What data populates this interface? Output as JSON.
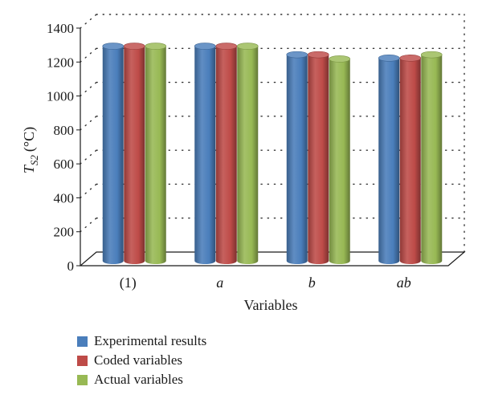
{
  "chart_data": {
    "type": "bar",
    "categories": [
      "(1)",
      "a",
      "b",
      "ab"
    ],
    "category_italic": [
      false,
      true,
      true,
      true
    ],
    "series": [
      {
        "name": "Experimental results",
        "values": [
          1265,
          1265,
          1215,
          1195
        ],
        "color": "#4a7ebb"
      },
      {
        "name": "Coded variables",
        "values": [
          1265,
          1265,
          1215,
          1195
        ],
        "color": "#be4b48"
      },
      {
        "name": "Actual variables",
        "values": [
          1265,
          1265,
          1190,
          1215
        ],
        "color": "#98b954"
      }
    ],
    "ylabel_main": "T",
    "ylabel_sub": "S2",
    "ylabel_unit": "(°C)",
    "xlabel": "Variables",
    "ylim": [
      0,
      1400
    ],
    "yticks": [
      "0",
      "200",
      "400",
      "600",
      "800",
      "1000",
      "1200",
      "1400"
    ],
    "grid": "dotted",
    "legend_position": "bottom-left"
  }
}
